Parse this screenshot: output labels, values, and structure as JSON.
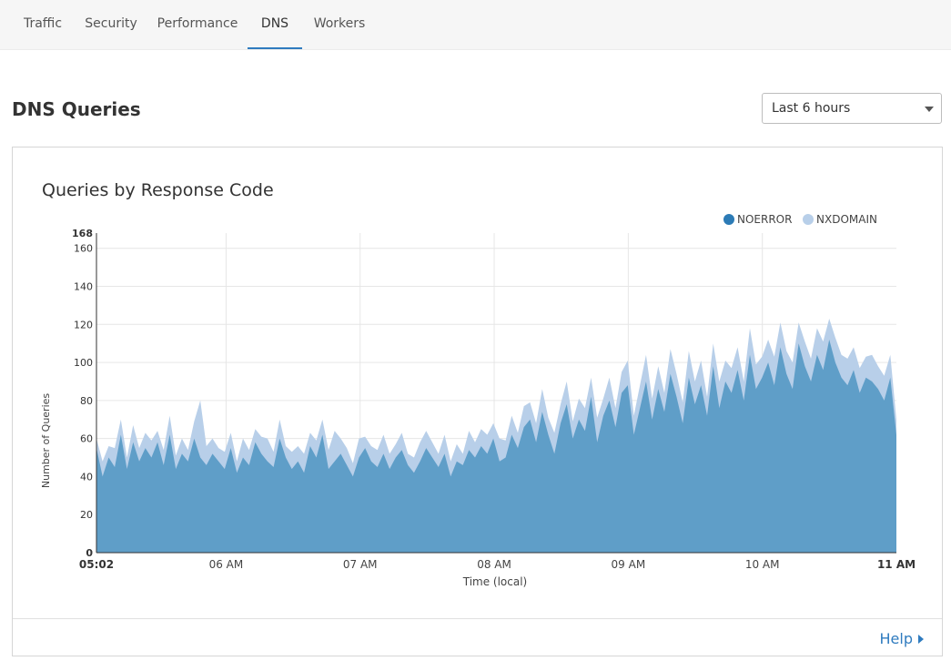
{
  "nav": {
    "tabs": [
      {
        "label": "Traffic"
      },
      {
        "label": "Security"
      },
      {
        "label": "Performance"
      },
      {
        "label": "DNS",
        "active": true
      },
      {
        "label": "Workers"
      }
    ]
  },
  "page": {
    "title": "DNS Queries"
  },
  "time_range": {
    "selected": "Last 6 hours"
  },
  "card": {
    "help_label": "Help"
  },
  "colors": {
    "accent": "#2f7bbf",
    "noerror": "#2c7bb6",
    "noerror_area": "#5f9ec8",
    "nxdomain": "#b8cfe9"
  },
  "chart_data": {
    "type": "area",
    "title": "Queries by Response Code",
    "xlabel": "Time (local)",
    "ylabel": "Number of Queries",
    "ylim": [
      0,
      168
    ],
    "y_ticks": [
      "0",
      "20",
      "40",
      "60",
      "80",
      "100",
      "120",
      "140",
      "160",
      "168"
    ],
    "x_range": [
      "05:02",
      "11:00"
    ],
    "x_ticks": [
      "05:02",
      "06 AM",
      "07 AM",
      "08 AM",
      "09 AM",
      "10 AM",
      "11 AM"
    ],
    "legend_position": "top-right",
    "stacked": true,
    "grid": true,
    "series": [
      {
        "name": "NOERROR",
        "values": [
          55,
          40,
          50,
          45,
          62,
          44,
          58,
          48,
          55,
          50,
          58,
          46,
          62,
          44,
          52,
          48,
          60,
          50,
          46,
          52,
          48,
          44,
          55,
          42,
          50,
          46,
          58,
          52,
          48,
          45,
          60,
          50,
          44,
          48,
          42,
          56,
          50,
          62,
          44,
          48,
          52,
          46,
          40,
          50,
          55,
          48,
          45,
          52,
          44,
          50,
          54,
          46,
          42,
          48,
          55,
          50,
          45,
          52,
          40,
          48,
          46,
          54,
          50,
          56,
          52,
          60,
          48,
          50,
          62,
          55,
          66,
          70,
          58,
          74,
          62,
          52,
          68,
          78,
          60,
          70,
          64,
          82,
          58,
          72,
          80,
          66,
          84,
          88,
          62,
          76,
          90,
          70,
          86,
          74,
          94,
          82,
          68,
          92,
          78,
          88,
          72,
          98,
          76,
          90,
          84,
          96,
          80,
          104,
          86,
          92,
          100,
          88,
          108,
          94,
          86,
          110,
          98,
          90,
          104,
          96,
          112,
          100,
          92,
          88,
          96,
          84,
          92,
          90,
          86,
          80,
          92,
          62
        ]
      },
      {
        "name": "NXDOMAIN",
        "values": [
          5,
          8,
          6,
          10,
          8,
          6,
          9,
          7,
          8,
          9,
          6,
          8,
          10,
          7,
          8,
          6,
          9,
          30,
          10,
          8,
          7,
          9,
          8,
          6,
          10,
          8,
          7,
          9,
          12,
          8,
          10,
          6,
          9,
          8,
          10,
          7,
          9,
          8,
          10,
          16,
          8,
          9,
          7,
          10,
          6,
          8,
          9,
          10,
          8,
          7,
          9,
          6,
          8,
          10,
          9,
          8,
          7,
          10,
          8,
          9,
          6,
          10,
          8,
          9,
          10,
          8,
          12,
          9,
          10,
          8,
          11,
          9,
          10,
          12,
          9,
          11,
          10,
          12,
          9,
          11,
          12,
          10,
          13,
          9,
          12,
          10,
          11,
          13,
          10,
          12,
          14,
          11,
          12,
          10,
          13,
          12,
          11,
          14,
          12,
          13,
          10,
          12,
          14,
          11,
          13,
          12,
          10,
          14,
          13,
          11,
          12,
          15,
          13,
          12,
          14,
          11,
          13,
          12,
          14,
          15,
          11,
          13,
          12,
          14,
          12,
          13,
          11,
          14,
          12,
          13,
          12,
          8
        ]
      }
    ]
  }
}
